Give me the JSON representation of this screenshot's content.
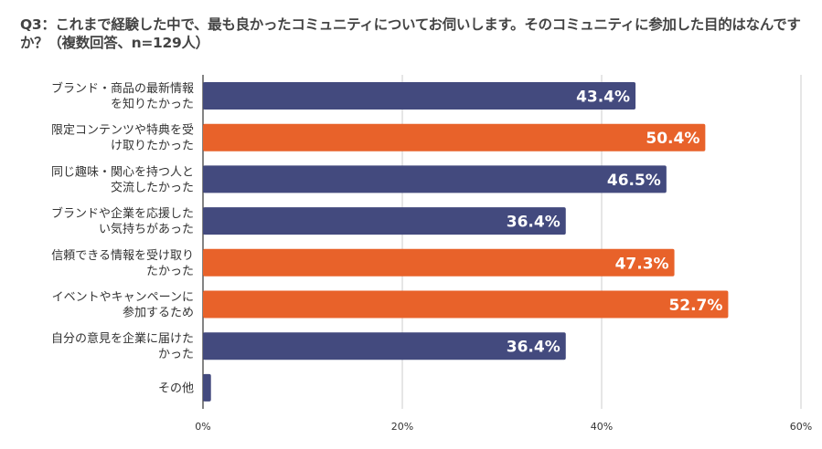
{
  "chart_data": {
    "type": "bar",
    "orientation": "horizontal",
    "title": "Q3：これまで経験した中で、最も良かったコミュニティについてお伺いします。そのコミュニティに参加した目的はなんですか？（複数回答、n=129人）",
    "categories": [
      [
        "ブランド・商品の最新情報",
        "を知りたかった"
      ],
      [
        "限定コンテンツや特典を受",
        "け取りたかった"
      ],
      [
        "同じ趣味・関心を持つ人と",
        "交流したかった"
      ],
      [
        "ブランドや企業を応援した",
        "い気持ちがあった"
      ],
      [
        "信頼できる情報を受け取り",
        "たかった"
      ],
      [
        "イベントやキャンペーンに",
        "参加するため"
      ],
      [
        "自分の意見を企業に届けた",
        "かった"
      ],
      [
        "その他"
      ]
    ],
    "values": [
      43.4,
      50.4,
      46.5,
      36.4,
      47.3,
      52.7,
      36.4,
      0.8
    ],
    "data_labels": [
      "43.4%",
      "50.4%",
      "46.5%",
      "36.4%",
      "47.3%",
      "52.7%",
      "36.4%",
      ""
    ],
    "bar_colors": [
      "#434a7e",
      "#e8622a",
      "#434a7e",
      "#434a7e",
      "#e8622a",
      "#e8622a",
      "#434a7e",
      "#434a7e"
    ],
    "xlim": [
      0,
      60
    ],
    "xticks": [
      "0%",
      "20%",
      "40%",
      "60%"
    ],
    "xtick_values": [
      0,
      20,
      40,
      60
    ],
    "grid": true,
    "xlabel": "",
    "ylabel": ""
  }
}
